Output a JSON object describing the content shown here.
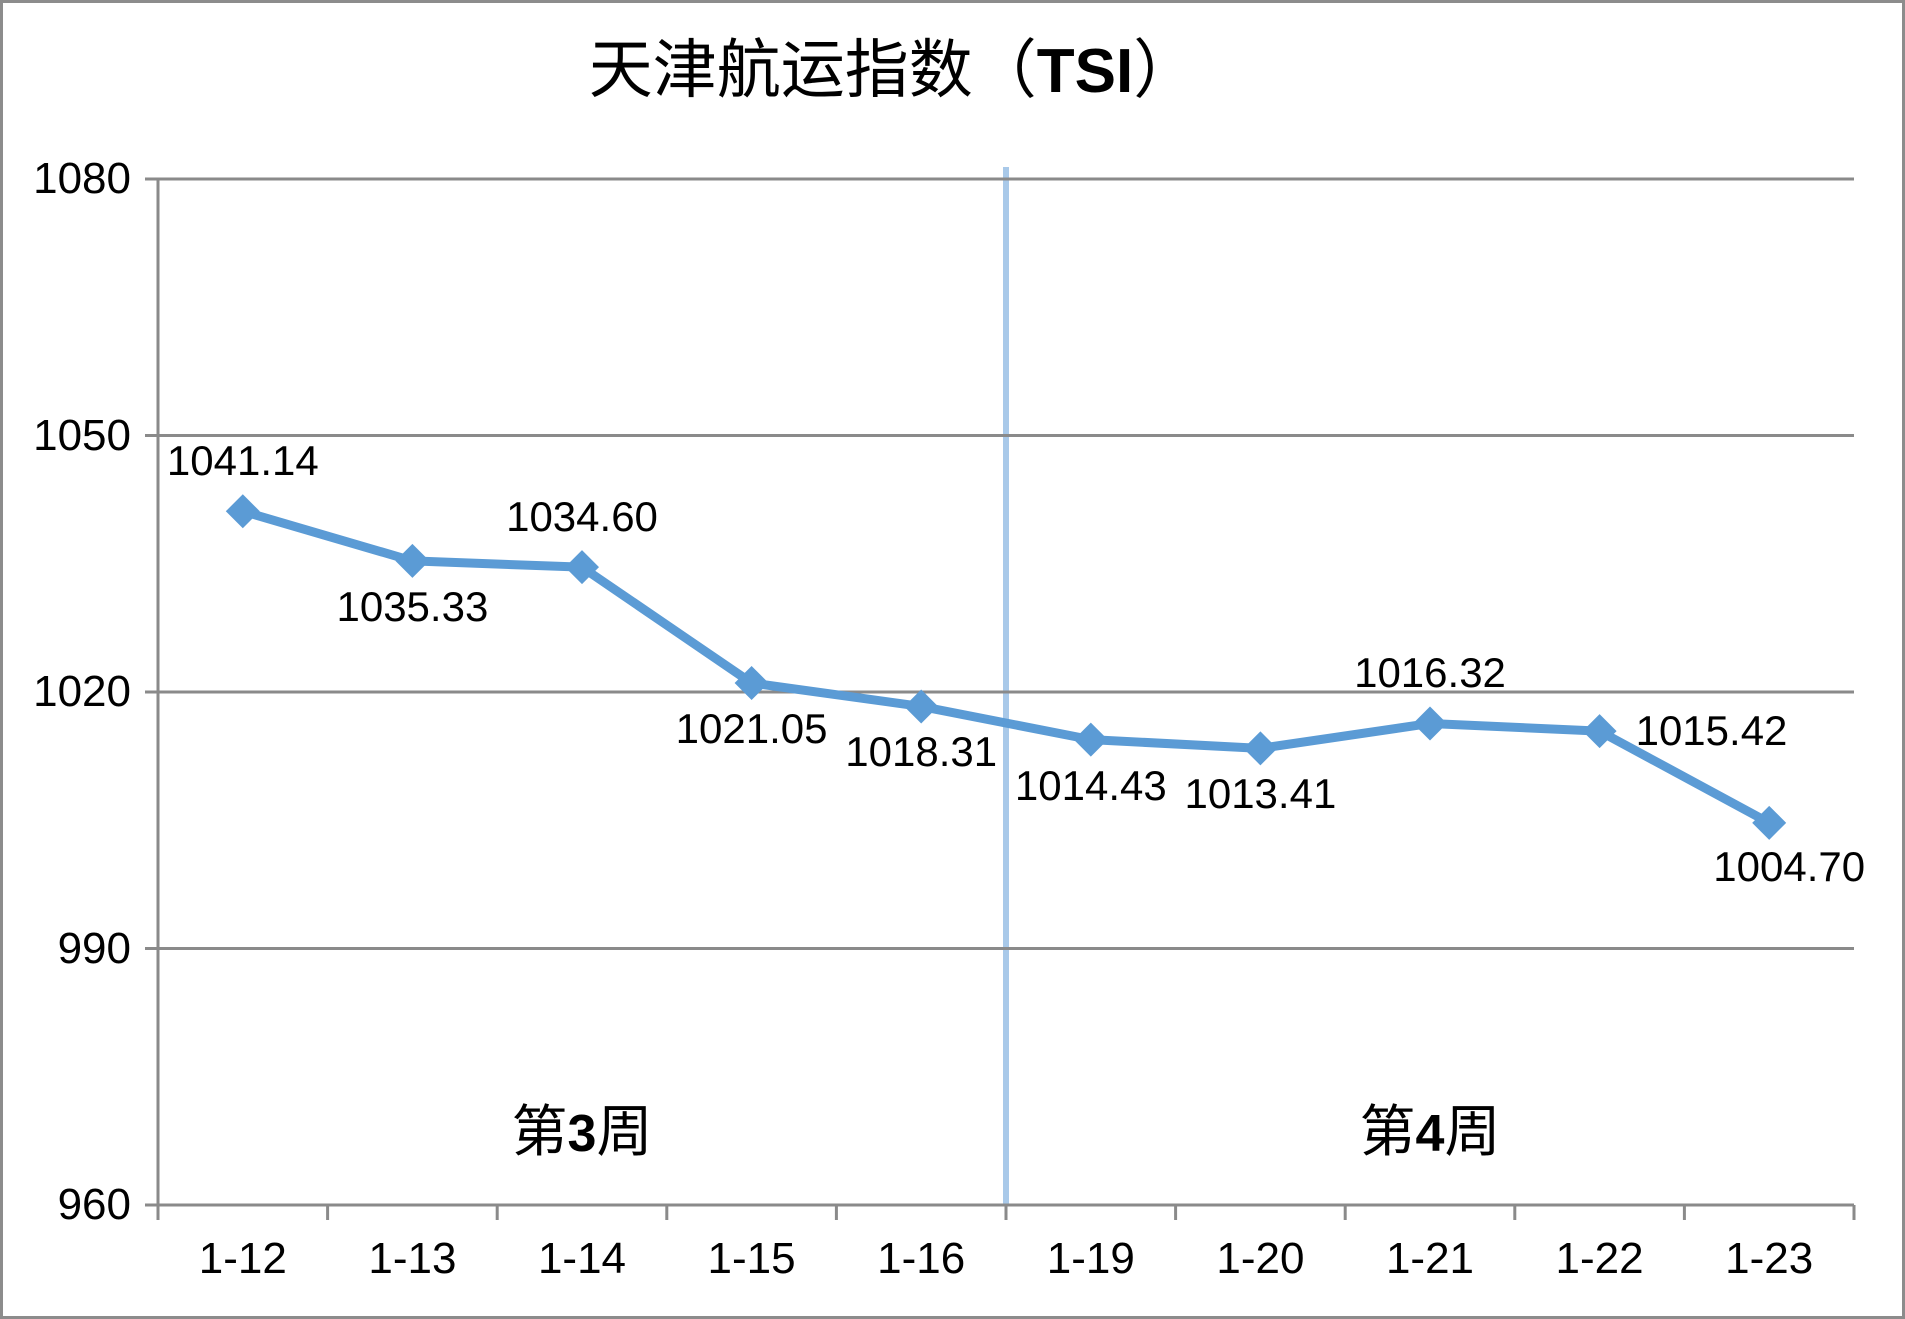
{
  "chart_data": {
    "type": "line",
    "title": {
      "prefix": "天津航运指数（",
      "bold": "TSI",
      "suffix": "）"
    },
    "categories": [
      "1-12",
      "1-13",
      "1-14",
      "1-15",
      "1-16",
      "1-19",
      "1-20",
      "1-21",
      "1-22",
      "1-23"
    ],
    "values": [
      1041.14,
      1035.33,
      1034.6,
      1021.05,
      1018.31,
      1014.43,
      1013.41,
      1016.32,
      1015.42,
      1004.7
    ],
    "data_labels": [
      "1041.14",
      "1035.33",
      "1034.60",
      "1021.05",
      "1018.31",
      "1014.43",
      "1013.41",
      "1016.32",
      "1015.42",
      "1004.70"
    ],
    "label_placements": [
      "above",
      "below",
      "above",
      "below",
      "below",
      "below",
      "below",
      "above",
      "right",
      "below-right"
    ],
    "ylim": [
      960,
      1080
    ],
    "ytick_step": 30,
    "yticks": [
      "1080",
      "1050",
      "1020",
      "990",
      "960"
    ],
    "grid": true,
    "legend": "none",
    "marker": "diamond",
    "series_color": "#5B9BD5",
    "gridline_color": "#8A8A8A",
    "axis_color": "#8A8A8A",
    "divider": {
      "after_category": "1-16",
      "color": "#A9C9E9"
    },
    "annotations": [
      {
        "pre": "第",
        "num": "3",
        "post": "周"
      },
      {
        "pre": "第",
        "num": "4",
        "post": "周"
      }
    ]
  }
}
